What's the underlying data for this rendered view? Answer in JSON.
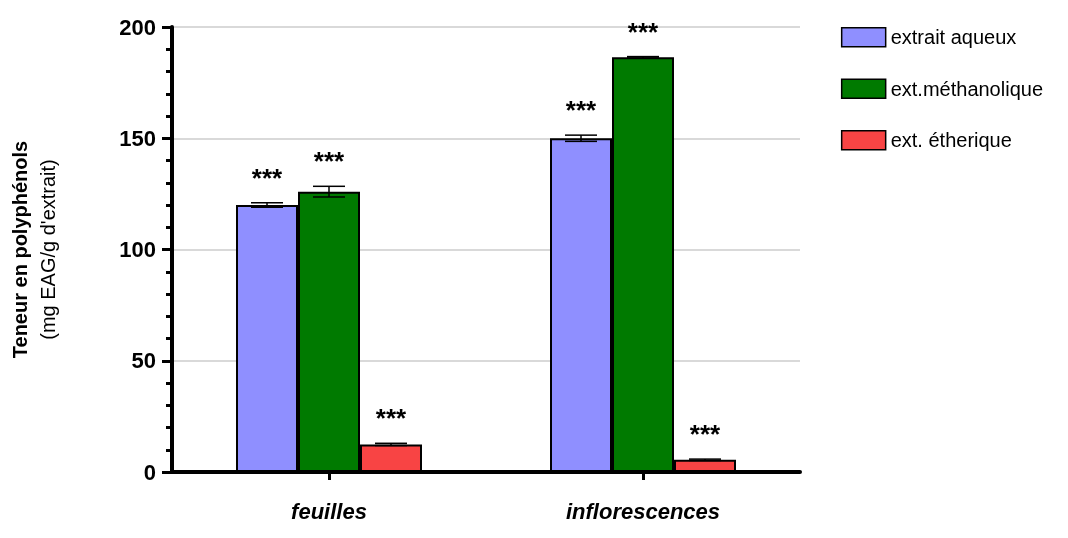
{
  "chart_data": {
    "type": "bar",
    "ylabel": "Teneur en polyphénols\n(mg EAG/g d'extrait)",
    "categories": [
      "feuilles",
      "inflorescences"
    ],
    "series": [
      {
        "name": "extrait aqueux",
        "color": "#8f8fff",
        "values": [
          120,
          150
        ],
        "errors": [
          1,
          1.4
        ],
        "value_labels": [
          "***",
          "***"
        ]
      },
      {
        "name": "ext.méthanolique",
        "color": "#007a00",
        "values": [
          126,
          186.4
        ],
        "errors": [
          2.4,
          0.3
        ],
        "value_labels": [
          "***",
          "***"
        ]
      },
      {
        "name": "ext. étherique",
        "color": "#f84444",
        "values": [
          12.4,
          5.5
        ],
        "errors": [
          0.5,
          0.3
        ],
        "value_labels": [
          "***",
          "***"
        ]
      }
    ],
    "ylim": [
      0,
      200
    ],
    "yticks": [
      0,
      50,
      100,
      150,
      200
    ],
    "grid": "y",
    "legend": "top right"
  }
}
